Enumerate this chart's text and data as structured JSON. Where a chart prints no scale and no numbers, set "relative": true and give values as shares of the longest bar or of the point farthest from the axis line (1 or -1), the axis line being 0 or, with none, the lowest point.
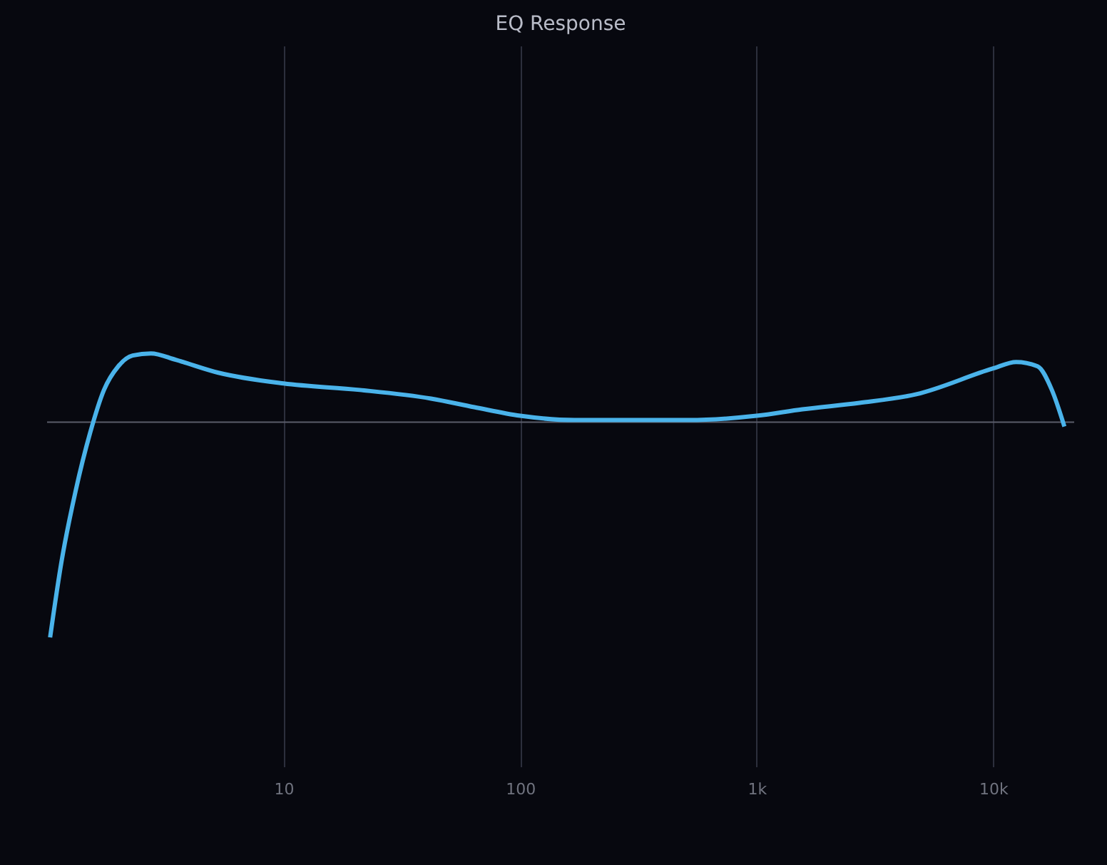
{
  "chart_data": {
    "type": "line",
    "title": "EQ Response",
    "relative": true,
    "log": "x",
    "grid": "x",
    "xlim": [
      1,
      22000
    ],
    "xticks": [
      10,
      100,
      {
        "value": 1000,
        "label": "1k"
      },
      {
        "value": 10000,
        "label": "10k"
      }
    ],
    "series": [
      {
        "color": "#4ab3ea",
        "x": [
          1.03,
          1.15,
          1.32,
          1.52,
          1.74,
          2.0,
          2.3,
          2.75,
          3.5,
          5.3,
          10,
          21,
          42,
          64,
          100,
          170,
          257,
          514,
          1000,
          1560,
          2720,
          4730,
          10000,
          12500,
          15400,
          17700,
          20000
        ],
        "values": [
          -1,
          -0.65,
          -0.32,
          -0.05,
          0.15,
          0.26,
          0.31,
          0.32,
          0.29,
          0.23,
          0.18,
          0.15,
          0.11,
          0.07,
          0.03,
          0.01,
          0.01,
          0.01,
          0.03,
          0.06,
          0.09,
          0.13,
          0.25,
          0.28,
          0.26,
          0.15,
          -0.02
        ]
      }
    ]
  }
}
